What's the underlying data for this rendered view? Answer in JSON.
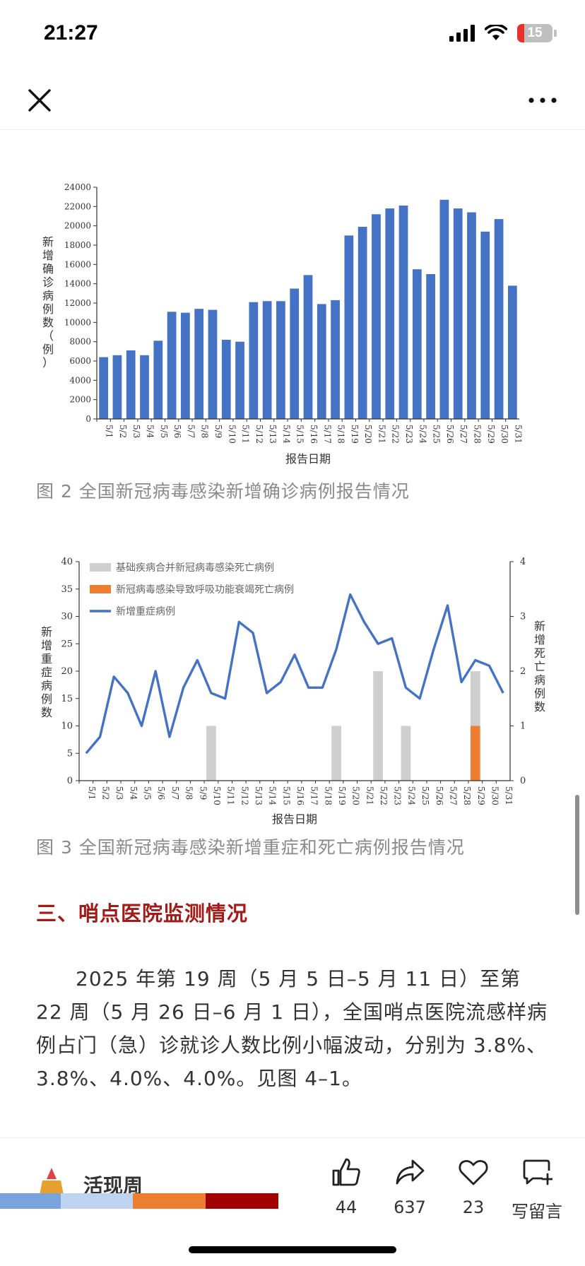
{
  "status": {
    "time": "21:27",
    "battery": "15"
  },
  "nav": {
    "close_icon": "close-icon",
    "more_icon": "more-icon"
  },
  "chart2": {
    "chart_data": {
      "type": "bar",
      "categories": [
        "5/1",
        "5/2",
        "5/3",
        "5/4",
        "5/5",
        "5/6",
        "5/7",
        "5/8",
        "5/9",
        "5/10",
        "5/11",
        "5/12",
        "5/13",
        "5/14",
        "5/15",
        "5/16",
        "5/17",
        "5/18",
        "5/19",
        "5/20",
        "5/21",
        "5/22",
        "5/23",
        "5/24",
        "5/25",
        "5/26",
        "5/27",
        "5/28",
        "5/29",
        "5/30",
        "5/31"
      ],
      "values": [
        6400,
        6600,
        7100,
        6600,
        8100,
        11100,
        11000,
        11400,
        11300,
        8200,
        8000,
        12100,
        12200,
        12200,
        13500,
        14900,
        11900,
        12300,
        19000,
        19900,
        21200,
        21800,
        22100,
        15500,
        15000,
        22700,
        21800,
        21400,
        19400,
        20700,
        13800
      ],
      "xlabel": "报告日期",
      "ylabel": "新增确诊病例数（例）",
      "ylim": [
        0,
        24000
      ],
      "yticks": [
        "0",
        "2000",
        "4000",
        "6000",
        "8000",
        "10000",
        "12000",
        "14000",
        "16000",
        "18000",
        "20000",
        "22000",
        "24000"
      ],
      "color": "#4472c4"
    },
    "caption": "图 2  全国新冠病毒感染新增确诊病例报告情况"
  },
  "chart3": {
    "chart_data": {
      "type": "bar",
      "categories": [
        "5/1",
        "5/2",
        "5/3",
        "5/4",
        "5/5",
        "5/6",
        "5/7",
        "5/8",
        "5/9",
        "5/10",
        "5/11",
        "5/12",
        "5/13",
        "5/14",
        "5/15",
        "5/16",
        "5/17",
        "5/18",
        "5/19",
        "5/20",
        "5/21",
        "5/22",
        "5/23",
        "5/24",
        "5/25",
        "5/26",
        "5/27",
        "5/28",
        "5/29",
        "5/30",
        "5/31"
      ],
      "series": [
        {
          "name": "基础疾病合并新冠病毒感染死亡病例",
          "type": "bar",
          "axis": "right",
          "color": "#cfcfcf",
          "values": [
            0,
            0,
            0,
            0,
            0,
            0,
            0,
            0,
            0,
            1,
            0,
            0,
            0,
            0,
            0,
            0,
            0,
            0,
            1,
            0,
            0,
            2,
            0,
            1,
            0,
            0,
            0,
            0,
            1,
            0,
            0
          ]
        },
        {
          "name": "新冠病毒感染导致呼吸功能衰竭死亡病例",
          "type": "bar",
          "axis": "right",
          "color": "#ed7d31",
          "values": [
            0,
            0,
            0,
            0,
            0,
            0,
            0,
            0,
            0,
            0,
            0,
            0,
            0,
            0,
            0,
            0,
            0,
            0,
            0,
            0,
            0,
            0,
            0,
            0,
            0,
            0,
            0,
            0,
            1,
            0,
            0
          ]
        },
        {
          "name": "新增重症病例",
          "type": "line",
          "axis": "left",
          "color": "#4472c4",
          "values": [
            5,
            8,
            19,
            16,
            10,
            20,
            8,
            17,
            22,
            16,
            15,
            29,
            27,
            16,
            18,
            23,
            17,
            17,
            24,
            34,
            29,
            25,
            26,
            17,
            15,
            24,
            32,
            18,
            22,
            21,
            16
          ]
        }
      ],
      "xlabel": "报告日期",
      "ylabel_left": "新增重症病例数",
      "ylabel_right": "新增死亡病例数",
      "ylim_left": [
        0,
        40
      ],
      "ylim_right": [
        0,
        4
      ],
      "yticks_left": [
        "0",
        "5",
        "10",
        "15",
        "20",
        "25",
        "30",
        "35",
        "40"
      ],
      "yticks_right": [
        "0",
        "1",
        "2",
        "3",
        "4"
      ],
      "legend": "top-left"
    },
    "caption": "图 3  全国新冠病毒感染新增重症和死亡病例报告情况"
  },
  "section": {
    "title": "三、哨点医院监测情况",
    "paragraph": "2025 年第 19 周（5 月 5 日–5 月 11 日）至第 22 周（5 月 26 日–6 月 1 日），全国哨点医院流感样病例占门（急）诊就诊人数比例小幅波动，分别为 3.8%、3.8%、4.0%、4.0%。见图 4–1。"
  },
  "bottom": {
    "account_name": "活现周",
    "strip_colors": [
      "#7aa3dc",
      "#bdd3f0",
      "#ed7d31",
      "#a30000"
    ],
    "actions": [
      {
        "icon": "like-icon",
        "label": "44"
      },
      {
        "icon": "share-icon",
        "label": "637"
      },
      {
        "icon": "heart-icon",
        "label": "23"
      },
      {
        "icon": "comment-icon",
        "label": "写留言"
      }
    ]
  }
}
